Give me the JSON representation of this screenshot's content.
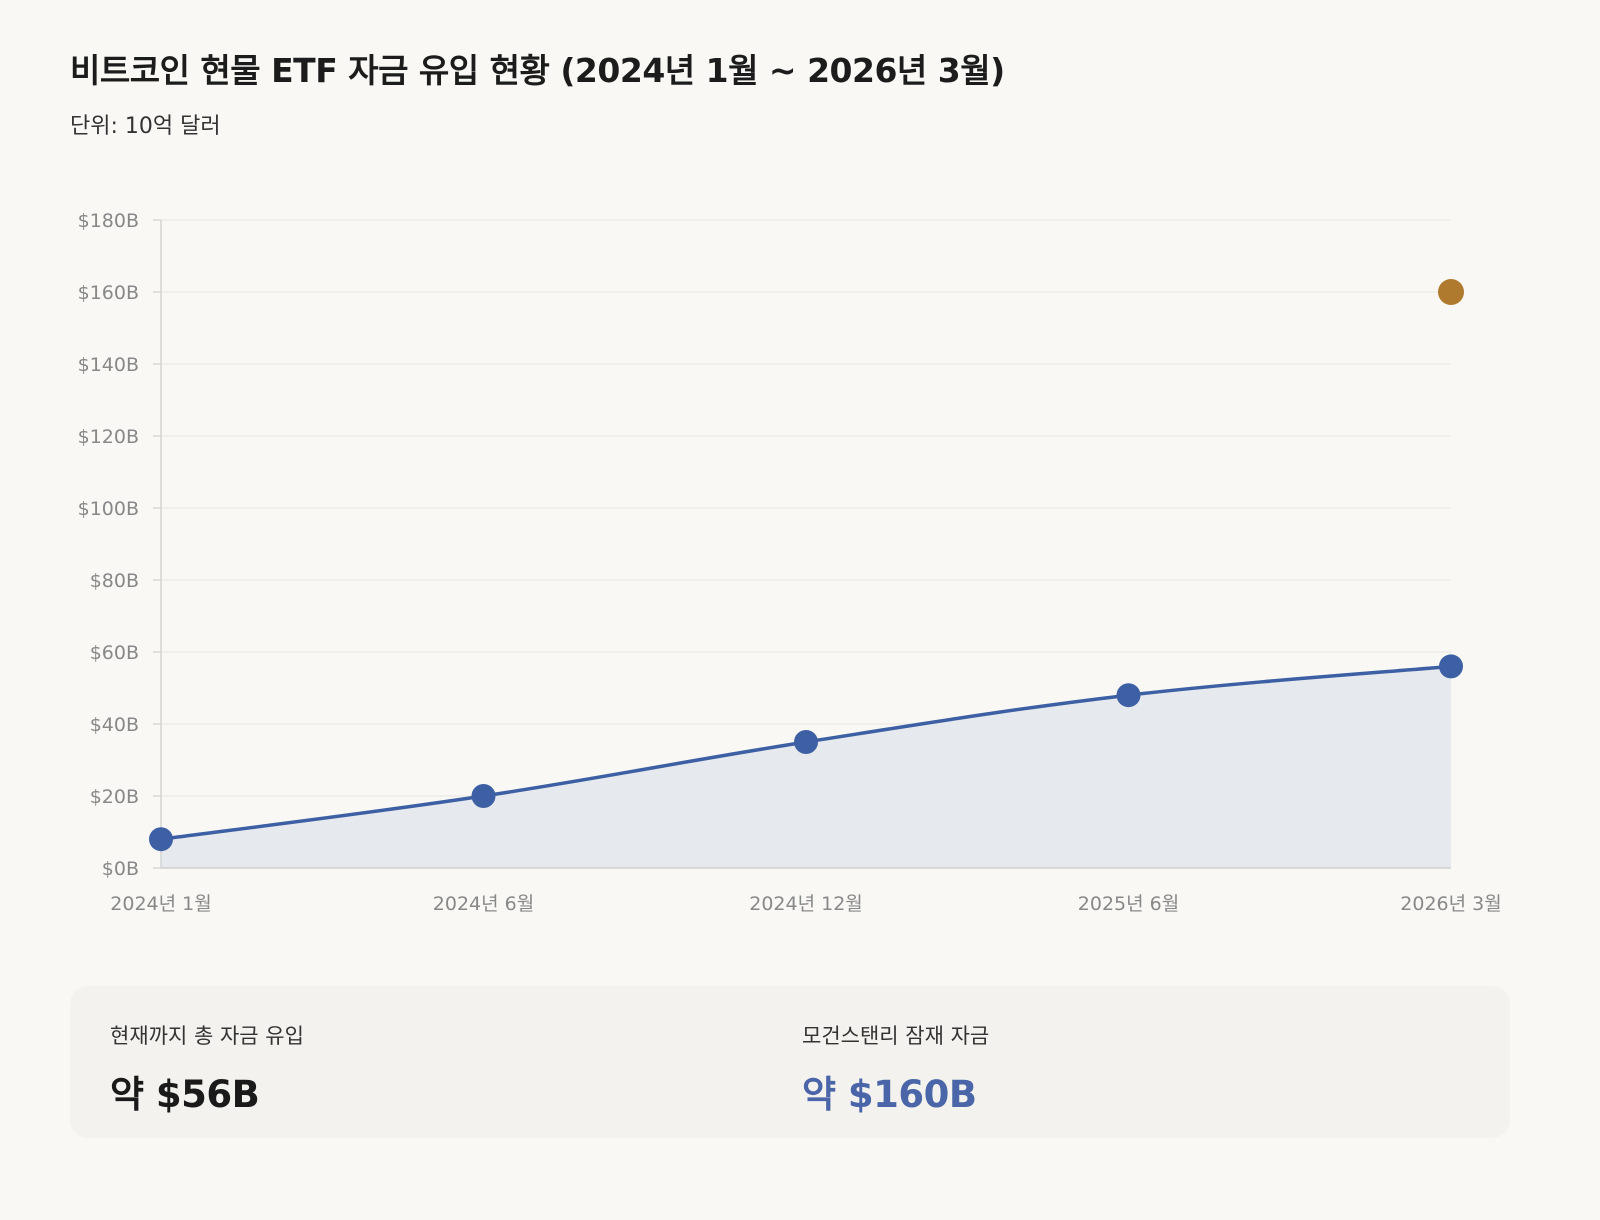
{
  "title": "비트코인 현물 ETF 자금 유입 현황 (2024년 1월 ~ 2026년 3월)",
  "subtitle": "단위: 10억 달러",
  "chart_data": {
    "type": "line",
    "categories": [
      "2024년 1월",
      "2024년 6월",
      "2024년 12월",
      "2025년 6월",
      "2026년 3월"
    ],
    "series": [
      {
        "values": [
          8,
          20,
          35,
          48,
          56
        ],
        "color": "#3d5fa3",
        "fill": "area"
      }
    ],
    "highlight": {
      "category": "2026년 3월",
      "value": 160,
      "color": "#b07a2e"
    },
    "yticks": [
      "$0B",
      "$20B",
      "$40B",
      "$60B",
      "$80B",
      "$100B",
      "$120B",
      "$140B",
      "$160B",
      "$180B"
    ],
    "ylim": [
      0,
      180
    ],
    "grid": true,
    "legend": "none"
  },
  "summary": {
    "current_label": "현재까지 총 자금 유입",
    "current_value": "약 $56B",
    "current_color": "#1a1a1a",
    "potential_label": "모건스탠리 잠재 자금",
    "potential_value": "약 $160B",
    "potential_color": "#4a66a8"
  }
}
